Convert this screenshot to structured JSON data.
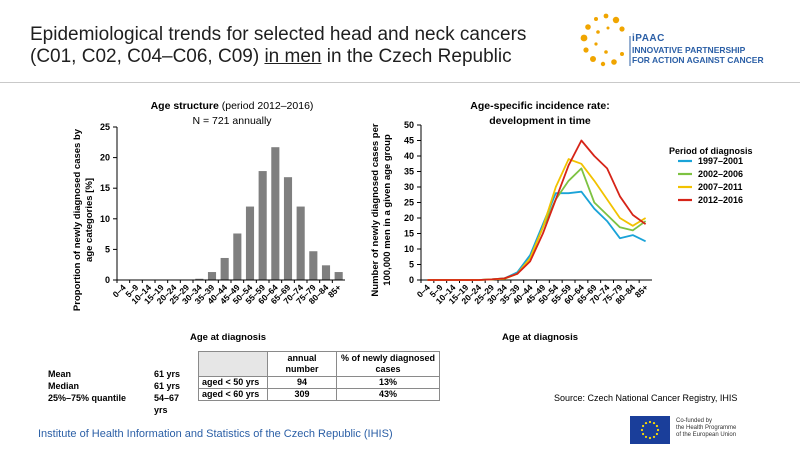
{
  "header": {
    "title_line1": "Epidemiological trends for selected head and neck cancers",
    "title_line2_a": "(C01, C02, C04–C06, C09) ",
    "title_line2_u": "in men",
    "title_line2_b": " in the Czech Republic"
  },
  "logo": {
    "line1": "iPAAC",
    "line2": "INNOVATIVE PARTNERSHIP",
    "line3": "FOR ACTION AGAINST CANCER",
    "color": "#2b5fa6",
    "dot_color": "#f0a500"
  },
  "chart_data": [
    {
      "type": "bar",
      "title_bold": "Age structure",
      "title_rest": " (period 2012–2016)",
      "subtitle": "N = 721 annually",
      "xlabel": "Age at diagnosis",
      "ylabel_line1": "Proportion of newly diagnosed cases by",
      "ylabel_line2": "age categories [%]",
      "ylim": [
        0,
        25
      ],
      "yticks": [
        0,
        5,
        10,
        15,
        20,
        25
      ],
      "categories": [
        "0–4",
        "5–9",
        "10–14",
        "15–19",
        "20–24",
        "25–29",
        "30–34",
        "35–39",
        "40–44",
        "45–49",
        "50–54",
        "55–59",
        "60–64",
        "65–69",
        "70–74",
        "75–79",
        "80–84",
        "85+"
      ],
      "values": [
        0,
        0,
        0,
        0,
        0,
        0,
        0.2,
        1.3,
        3.6,
        7.6,
        12,
        17.8,
        21.7,
        16.8,
        12,
        4.7,
        2.4,
        1.3
      ],
      "bar_color": "#7f7f7f"
    },
    {
      "type": "line",
      "title_line1": "Age-specific incidence rate:",
      "title_line2": "development in time",
      "xlabel": "Age at diagnosis",
      "ylabel_line1": "Number of newly diagnosed cases per",
      "ylabel_line2": "100,000 men in a given age group",
      "ylim": [
        0,
        50
      ],
      "yticks": [
        0,
        5,
        10,
        15,
        20,
        25,
        30,
        35,
        40,
        45,
        50
      ],
      "legend_title": "Period of diagnosis",
      "legend_position": "right",
      "categories": [
        "0–4",
        "5–9",
        "10–14",
        "15–19",
        "20–24",
        "25–29",
        "30–34",
        "35–39",
        "40–44",
        "45–49",
        "50–54",
        "55–59",
        "60–64",
        "65–69",
        "70–74",
        "75–79",
        "80–84",
        "85+"
      ],
      "series": [
        {
          "name": "1997–2001",
          "color": "#1aa3d8",
          "values": [
            0,
            0,
            0,
            0,
            0,
            0.2,
            0.5,
            2.5,
            8,
            18,
            28,
            28,
            28.5,
            23,
            19,
            13.5,
            14.5,
            12.5
          ]
        },
        {
          "name": "2002–2006",
          "color": "#7dc242",
          "values": [
            0,
            0,
            0,
            0,
            0,
            0.2,
            0.5,
            2,
            7,
            17,
            26,
            32,
            36,
            25,
            21,
            17,
            16,
            19
          ]
        },
        {
          "name": "2007–2011",
          "color": "#f2c200",
          "values": [
            0,
            0,
            0,
            0,
            0,
            0.2,
            0.4,
            2,
            7,
            17,
            30,
            39,
            37.5,
            32,
            26,
            20,
            17.5,
            20
          ]
        },
        {
          "name": "2012–2016",
          "color": "#d62418",
          "values": [
            0,
            0,
            0,
            0,
            0,
            0.2,
            0.5,
            2,
            6,
            15,
            26,
            37,
            45,
            40,
            36,
            27,
            21,
            18
          ]
        }
      ]
    }
  ],
  "stats": {
    "mean_label": "Mean",
    "mean_value": "61 yrs",
    "median_label": "Median",
    "median_value": "61 yrs",
    "iqr_label": "25%–75% quantile",
    "iqr_value": "54–67 yrs"
  },
  "table": {
    "col1_header": "annual number",
    "col2_header": "% of newly diagnosed cases",
    "rows": [
      {
        "label": "aged < 50 yrs",
        "count": "94",
        "pct": "13%"
      },
      {
        "label": "aged < 60 yrs",
        "count": "309",
        "pct": "43%"
      }
    ]
  },
  "source": "Source: Czech National Cancer Registry, IHIS",
  "footer": {
    "institute": "Institute of Health Information and Statistics of the Czech Republic (IHIS)",
    "eu_line1": "Co-funded by",
    "eu_line2": "the Health Programme",
    "eu_line3": "of the European Union"
  }
}
